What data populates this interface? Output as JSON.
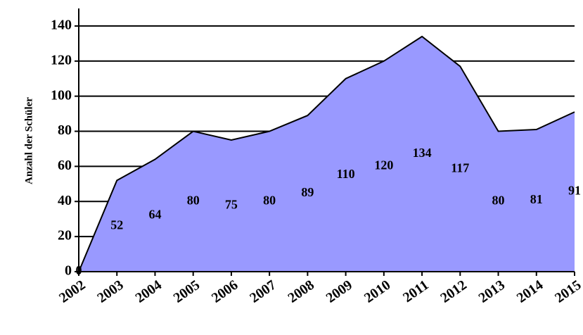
{
  "chart_data": {
    "type": "area",
    "y_label": "Anzahl der Schüler",
    "categories": [
      "2002",
      "2003",
      "2004",
      "2005",
      "2006",
      "2007",
      "2008",
      "2009",
      "2010",
      "2011",
      "2012",
      "2013",
      "2014",
      "2015"
    ],
    "values": [
      0,
      52,
      64,
      80,
      75,
      80,
      89,
      110,
      120,
      134,
      117,
      80,
      81,
      91
    ],
    "color": "#9999ff",
    "ylim": [
      0,
      150
    ],
    "yticks": [
      0,
      20,
      40,
      60,
      80,
      100,
      120,
      140
    ],
    "grid": true
  }
}
